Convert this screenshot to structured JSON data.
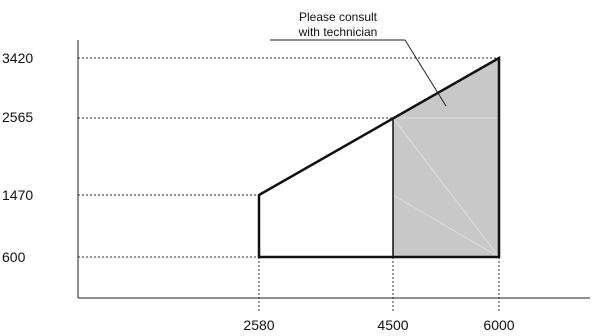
{
  "chart_data": {
    "type": "area",
    "x_ticks": [
      2580,
      4500,
      6000
    ],
    "y_ticks": [
      600,
      1470,
      2565,
      3420
    ],
    "x_tick_labels": [
      "2580",
      "4500",
      "6000"
    ],
    "y_tick_labels": [
      "3420",
      "2565",
      "1470",
      "600"
    ],
    "operating_region": {
      "points": [
        [
          2580,
          600
        ],
        [
          6000,
          600
        ],
        [
          6000,
          3420
        ],
        [
          2580,
          1470
        ]
      ]
    },
    "shaded_region": {
      "points": [
        [
          4500,
          600
        ],
        [
          6000,
          600
        ],
        [
          6000,
          3420
        ],
        [
          4500,
          2565
        ]
      ],
      "color": "#c8c8c8"
    },
    "annotation": {
      "lines": [
        "Please consult",
        "with technician"
      ]
    },
    "grid": "dashed guide lines at tick values",
    "title": "",
    "xlabel": "",
    "ylabel": ""
  }
}
